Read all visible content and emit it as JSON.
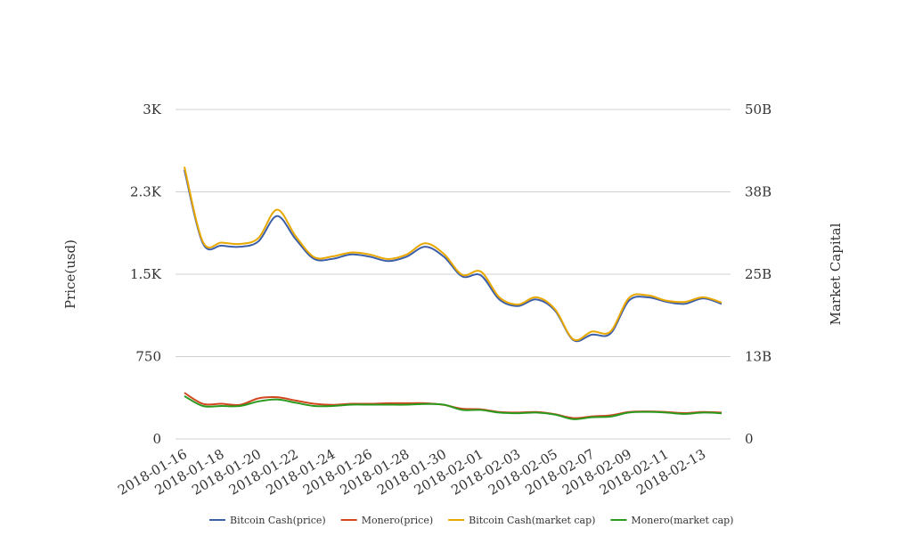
{
  "chart_data": {
    "type": "line",
    "title": "",
    "xlabel": "",
    "ylabel": "Price(usd)",
    "y2label": "Market Capital",
    "ylim": [
      0,
      3000
    ],
    "y2lim": [
      0,
      50000000000
    ],
    "yticks": [
      "0",
      "750",
      "1.5K",
      "2.3K",
      "3K"
    ],
    "y2ticks": [
      "0",
      "13B",
      "25B",
      "38B",
      "50B"
    ],
    "xticks": [
      "2018-01-16",
      "2018-01-18",
      "2018-01-20",
      "2018-01-22",
      "2018-01-24",
      "2018-01-26",
      "2018-01-28",
      "2018-01-30",
      "2018-02-01",
      "2018-02-03",
      "2018-02-05",
      "2018-02-07",
      "2018-02-09",
      "2018-02-11",
      "2018-02-13"
    ],
    "grid": true,
    "legend_position": "bottom",
    "x": [
      "2018-01-16",
      "2018-01-17",
      "2018-01-18",
      "2018-01-19",
      "2018-01-20",
      "2018-01-21",
      "2018-01-22",
      "2018-01-23",
      "2018-01-24",
      "2018-01-25",
      "2018-01-26",
      "2018-01-27",
      "2018-01-28",
      "2018-01-29",
      "2018-01-30",
      "2018-01-31",
      "2018-02-01",
      "2018-02-02",
      "2018-02-03",
      "2018-02-04",
      "2018-02-05",
      "2018-02-06",
      "2018-02-07",
      "2018-02-08",
      "2018-02-09",
      "2018-02-10",
      "2018-02-11",
      "2018-02-12",
      "2018-02-13",
      "2018-02-14"
    ],
    "series": [
      {
        "name": "Bitcoin Cash(price)",
        "axis": "left",
        "color": "#3d5fa8",
        "values": [
          2450,
          1780,
          1760,
          1750,
          1800,
          2030,
          1820,
          1640,
          1640,
          1680,
          1660,
          1620,
          1660,
          1750,
          1660,
          1480,
          1490,
          1270,
          1210,
          1270,
          1170,
          900,
          950,
          960,
          1260,
          1290,
          1250,
          1230,
          1280,
          1230
        ]
      },
      {
        "name": "Monero(price)",
        "axis": "left",
        "color": "#d2461e",
        "values": [
          420,
          320,
          320,
          310,
          370,
          380,
          350,
          320,
          310,
          320,
          320,
          325,
          325,
          325,
          310,
          275,
          270,
          245,
          240,
          245,
          225,
          190,
          205,
          215,
          245,
          250,
          245,
          235,
          245,
          240
        ]
      },
      {
        "name": "Bitcoin Cash(market cap)",
        "axis": "right",
        "color": "#e8a800",
        "values": [
          41300000000,
          29900000000,
          29800000000,
          29600000000,
          30500000000,
          34800000000,
          30800000000,
          27600000000,
          27700000000,
          28300000000,
          28000000000,
          27300000000,
          28000000000,
          29700000000,
          28100000000,
          24900000000,
          25400000000,
          21500000000,
          20400000000,
          21500000000,
          19700000000,
          15100000000,
          16300000000,
          16300000000,
          21400000000,
          21800000000,
          21000000000,
          20800000000,
          21500000000,
          20700000000
        ]
      },
      {
        "name": "Monero(market cap)",
        "axis": "right",
        "color": "#2a9a1f",
        "values": [
          6500000000,
          5000000000,
          5000000000,
          5000000000,
          5700000000,
          6000000000,
          5500000000,
          5000000000,
          5000000000,
          5200000000,
          5200000000,
          5200000000,
          5200000000,
          5300000000,
          5200000000,
          4400000000,
          4400000000,
          4000000000,
          3900000000,
          4000000000,
          3700000000,
          3000000000,
          3300000000,
          3400000000,
          4000000000,
          4100000000,
          4000000000,
          3800000000,
          4000000000,
          3900000000
        ]
      }
    ]
  }
}
